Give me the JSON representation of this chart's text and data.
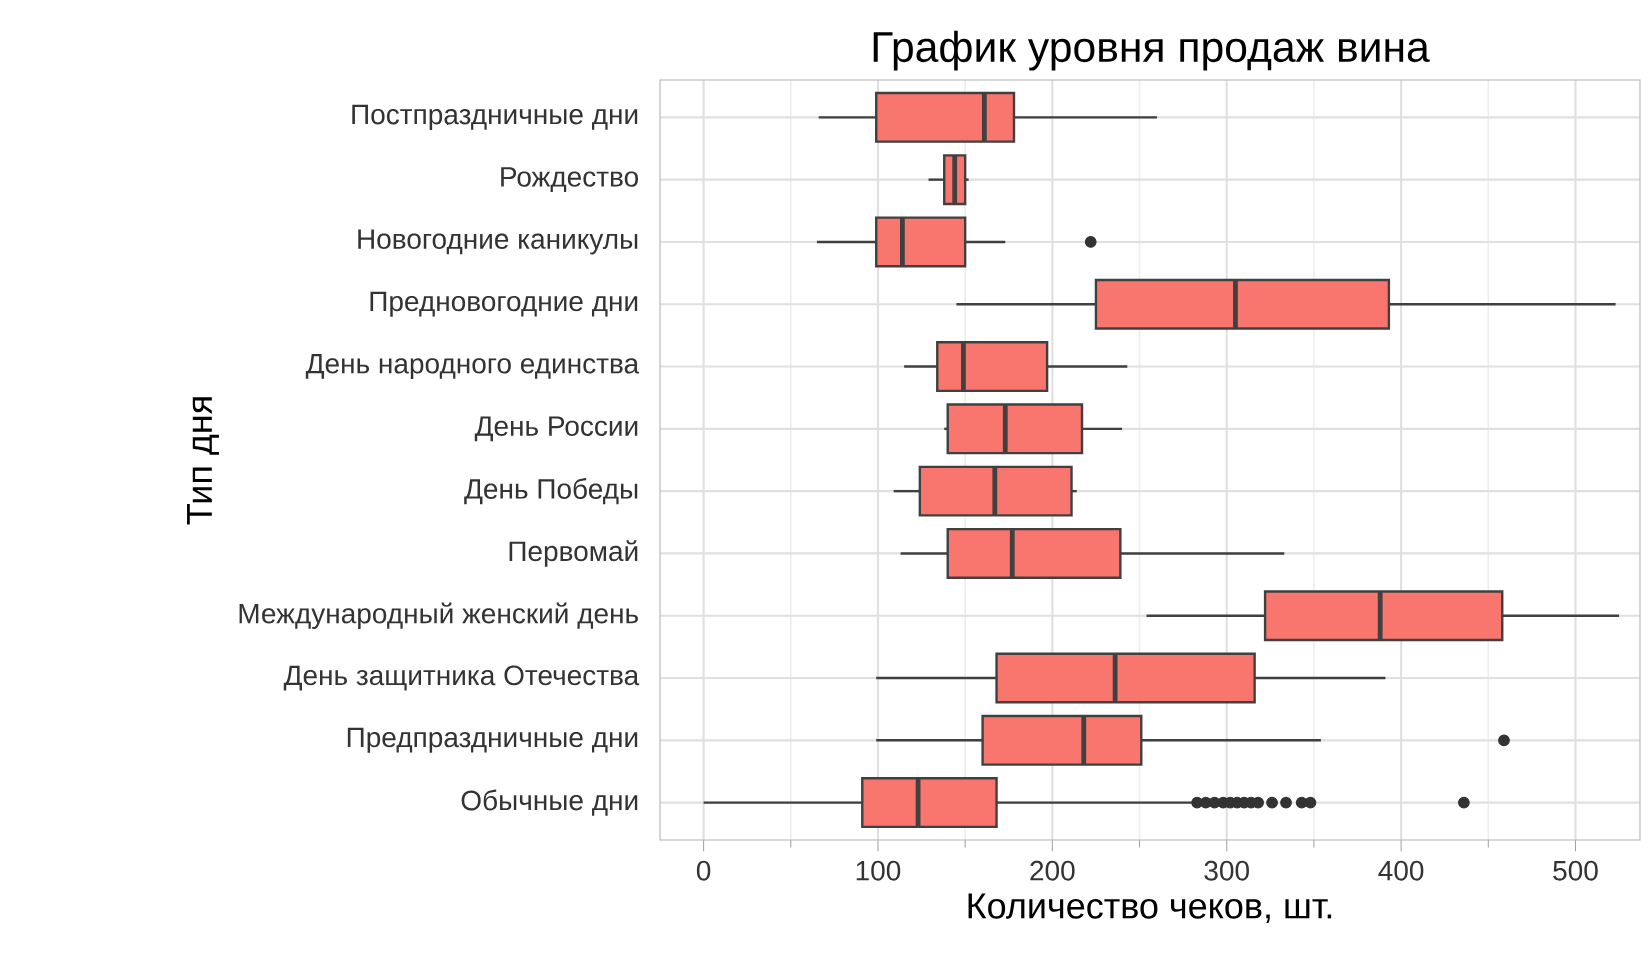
{
  "chart_data": {
    "type": "box",
    "title": "График уровня продаж вина",
    "xlabel": "Количество чеков, шт.",
    "ylabel": "Тип дня",
    "orientation": "horizontal",
    "color": "#f8766d",
    "grid": true,
    "categories": [
      "Постпраздничные дни",
      "Рождество",
      "Новогодние каникулы",
      "Предновогодние дни",
      "День народного единства",
      "День России",
      "День Победы",
      "Первомай",
      "Международный женский день",
      "День защитника Отечества",
      "Предпраздничные дни",
      "Обычные дни"
    ],
    "xlim": [
      -25,
      537
    ],
    "xticks": [
      0,
      100,
      200,
      300,
      400,
      500
    ],
    "boxes": [
      {
        "low": 66,
        "q1": 99,
        "median": 161,
        "q3": 178,
        "high": 260
      },
      {
        "low": 129,
        "q1": 138,
        "median": 144,
        "q3": 150,
        "high": 152
      },
      {
        "low": 65,
        "q1": 99,
        "median": 114,
        "q3": 150,
        "high": 173,
        "outliers": [
          222
        ]
      },
      {
        "low": 145,
        "q1": 225,
        "median": 305,
        "q3": 393,
        "high": 523
      },
      {
        "low": 115,
        "q1": 134,
        "median": 149,
        "q3": 197,
        "high": 243
      },
      {
        "low": 138,
        "q1": 140,
        "median": 173,
        "q3": 217,
        "high": 240
      },
      {
        "low": 109,
        "q1": 124,
        "median": 167,
        "q3": 211,
        "high": 214
      },
      {
        "low": 113,
        "q1": 140,
        "median": 177,
        "q3": 239,
        "high": 333
      },
      {
        "low": 254,
        "q1": 322,
        "median": 388,
        "q3": 458,
        "high": 525
      },
      {
        "low": 99,
        "q1": 168,
        "median": 236,
        "q3": 316,
        "high": 391
      },
      {
        "low": 99,
        "q1": 160,
        "median": 218,
        "q3": 251,
        "high": 354,
        "outliers": [
          459
        ]
      },
      {
        "low": 0,
        "q1": 91,
        "median": 123,
        "q3": 168,
        "high": 280,
        "outliers": [
          283,
          288,
          293,
          298,
          302,
          306,
          310,
          314,
          318,
          326,
          334,
          343,
          348,
          436
        ]
      }
    ]
  }
}
